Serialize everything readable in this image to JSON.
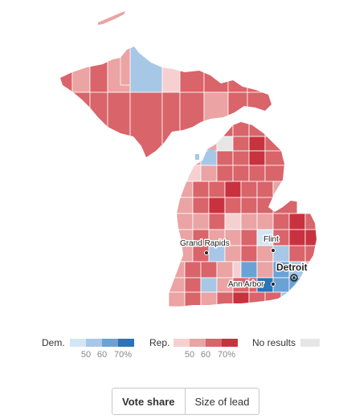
{
  "map": {
    "region": "Michigan counties",
    "cities": [
      {
        "name": "Grand Rapids",
        "major": false
      },
      {
        "name": "Flint",
        "major": false
      },
      {
        "name": "Detroit",
        "major": true
      },
      {
        "name": "Ann Arbor",
        "major": false
      }
    ],
    "colors": {
      "dem": [
        "#d4e6f6",
        "#a7c7e7",
        "#6aa2d6",
        "#2a74b8"
      ],
      "rep": [
        "#f6d0d0",
        "#eba3a3",
        "#d9646a",
        "#c8323e"
      ],
      "none": "#e6e6e6",
      "border": "#ffffff"
    }
  },
  "legend": {
    "dem_label": "Dem.",
    "rep_label": "Rep.",
    "no_results_label": "No results",
    "dem_ticks": [
      "50",
      "60",
      "70%"
    ],
    "rep_ticks": [
      "50",
      "60",
      "70%"
    ]
  },
  "toggle": {
    "vote_share": "Vote share",
    "size_of_lead": "Size of lead",
    "active": "vote_share"
  }
}
